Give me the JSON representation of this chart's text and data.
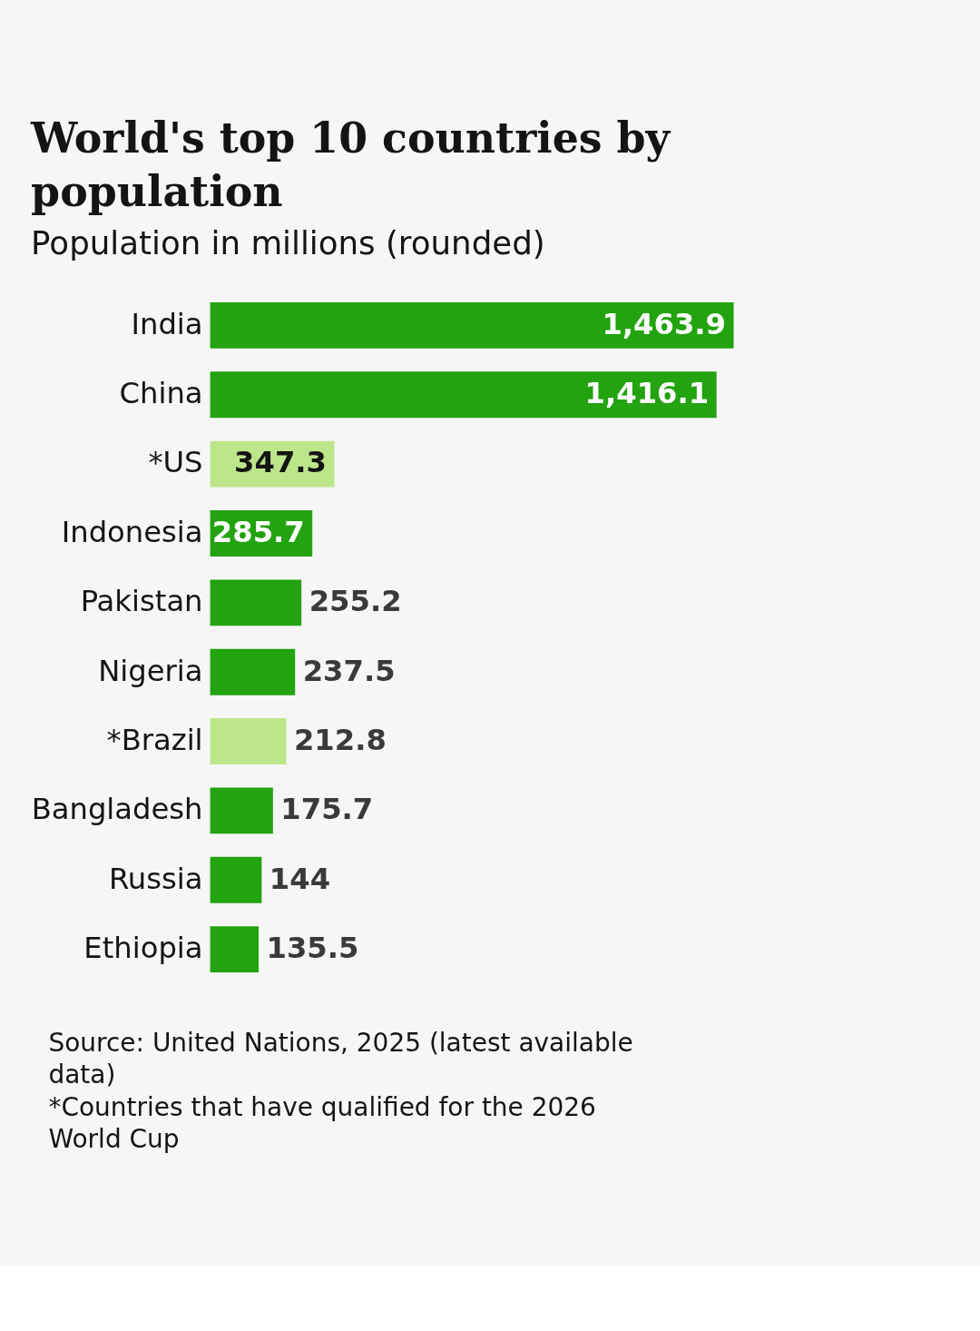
{
  "chart_data": {
    "type": "bar",
    "orientation": "horizontal",
    "title": "World's top 10 countries by population",
    "subtitle": "Population in millions (rounded)",
    "categories": [
      "India",
      "China",
      "*US",
      "Indonesia",
      "Pakistan",
      "Nigeria",
      "*Brazil",
      "Bangladesh",
      "Russia",
      "Ethiopia"
    ],
    "values": [
      1463.9,
      1416.1,
      347.3,
      285.7,
      255.2,
      237.5,
      212.8,
      175.7,
      144,
      135.5
    ],
    "value_labels": [
      "1,463.9",
      "1,416.1",
      "347.3",
      "285.7",
      "255.2",
      "237.5",
      "212.8",
      "175.7",
      "144",
      "135.5"
    ],
    "colors": [
      "#22a30f",
      "#22a30f",
      "#bde68a",
      "#22a30f",
      "#22a30f",
      "#22a30f",
      "#bde68a",
      "#22a30f",
      "#22a30f",
      "#22a30f"
    ],
    "annotations": [
      "Source: United Nations, 2025 (latest available data)",
      "*Countries that have qualified for the 2026 World Cup"
    ]
  }
}
